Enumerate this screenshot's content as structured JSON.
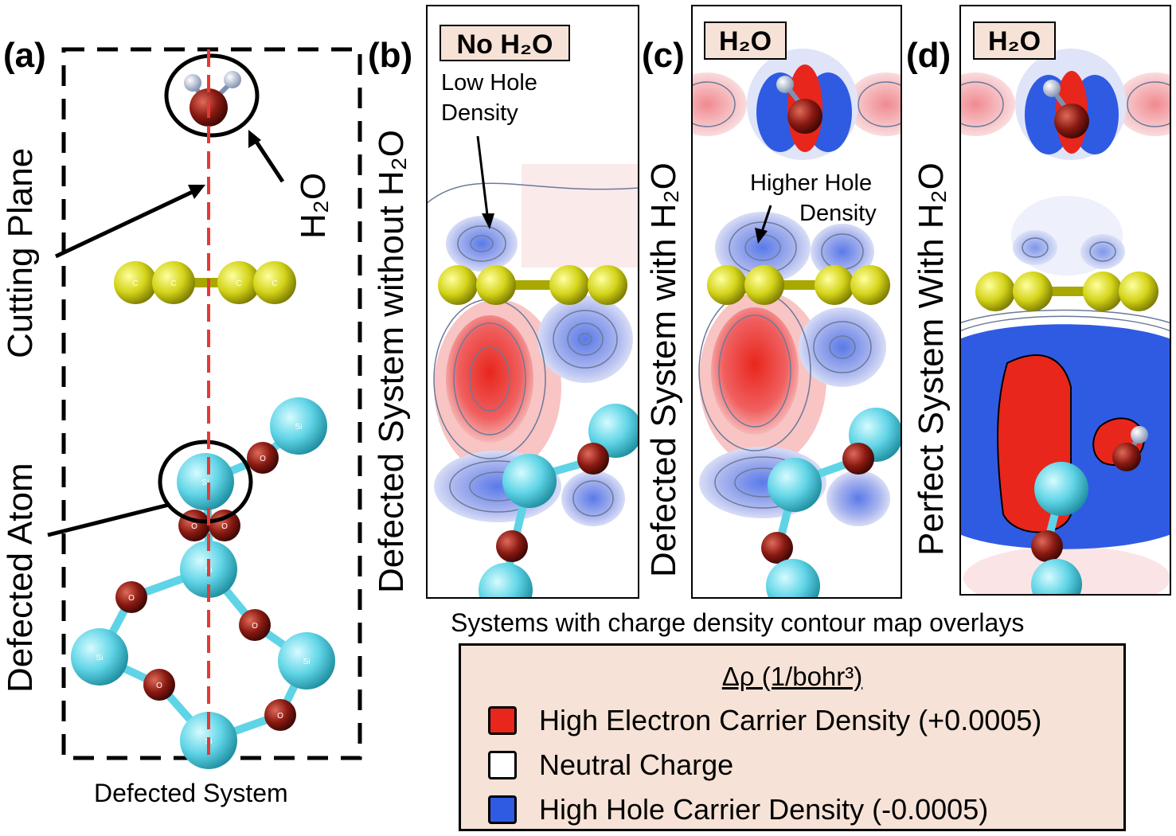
{
  "panel_a": {
    "letter": "(a)",
    "cutting_plane_label": "Cutting Plane",
    "defected_atom_label": "Defected Atom",
    "h2o_label": "H₂O",
    "caption": "Defected System"
  },
  "panel_b": {
    "letter": "(b)",
    "tag": "No H₂O",
    "side_label": "Defected System without H₂O",
    "annotation_line1": "Low Hole",
    "annotation_line2": "Density"
  },
  "panel_c": {
    "letter": "(c)",
    "tag": "H₂O",
    "side_label": "Defected System with H₂O",
    "annotation_line1": "Higher Hole",
    "annotation_line2": "Density"
  },
  "panel_d": {
    "letter": "(d)",
    "tag": "H₂O",
    "side_label": "Perfect System With H₂O"
  },
  "maps_caption": "Systems with charge density contour map overlays",
  "legend": {
    "title": "Δρ (1/bohr³)",
    "items": [
      {
        "label": "High Electron Carrier Density (+0.0005)",
        "color": "#e8261c"
      },
      {
        "label": "Neutral Charge",
        "color": "#ffffff"
      },
      {
        "label": "High Hole Carrier Density (-0.0005)",
        "color": "#2f5be3"
      }
    ]
  },
  "atom_labels": {
    "si": "Si",
    "o": "O",
    "c": "C",
    "h": "H"
  },
  "colors": {
    "carbon": "#d6d61a",
    "silicon": "#5fd4e6",
    "oxygen": "#8a1a12",
    "hydrogen": "#c8d0e0",
    "cutting_plane": "#e53935"
  }
}
